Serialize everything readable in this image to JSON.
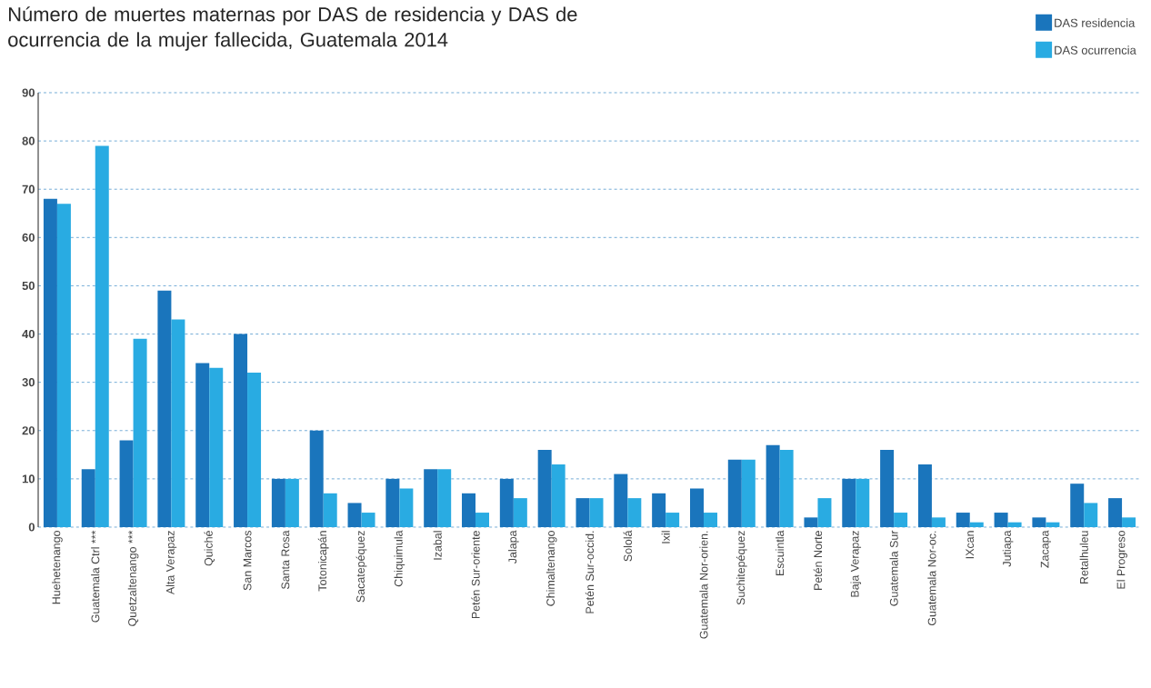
{
  "chart_data": {
    "type": "bar",
    "title": "Número de muertes maternas por DAS de residencia y DAS de ocurrencia de la mujer fallecida, Guatemala 2014",
    "categories": [
      "Huehetenango",
      "Guatemala Ctrl ***",
      "Quetzaltenango ***",
      "Alta Verapaz",
      "Quiché",
      "San Marcos",
      "Santa Rosa",
      "Totonicapán",
      "Sacatepéquez",
      "Chiquimula",
      "Izabal",
      "Petén Sur-oriente",
      "Jalapa",
      "Chimaltenango",
      "Petén Sur-occid.",
      "Sololá",
      "Ixil",
      "Guatemala Nor-orien.",
      "Suchitepéquez",
      "Escuintla",
      "Petén Norte",
      "Baja Verapaz",
      "Guatemala Sur",
      "Guatemala Nor-oc.",
      "IXcan",
      "Jutiapa",
      "Zacapa",
      "Retalhuleu",
      "El Progreso"
    ],
    "series": [
      {
        "name": "DAS residencia",
        "color": "#1a75bc",
        "values": [
          68,
          12,
          18,
          49,
          34,
          40,
          10,
          20,
          5,
          10,
          12,
          7,
          10,
          16,
          6,
          11,
          7,
          8,
          14,
          17,
          2,
          10,
          16,
          13,
          3,
          3,
          2,
          9,
          6
        ]
      },
      {
        "name": "DAS ocurrencia",
        "color": "#29abe2",
        "values": [
          67,
          79,
          39,
          43,
          33,
          32,
          10,
          7,
          3,
          8,
          12,
          3,
          6,
          13,
          6,
          6,
          3,
          3,
          14,
          16,
          6,
          10,
          3,
          2,
          1,
          1,
          1,
          5,
          2
        ]
      }
    ],
    "ylim": [
      0,
      90
    ],
    "yticks": [
      0,
      10,
      20,
      30,
      40,
      50,
      60,
      70,
      80,
      90
    ],
    "grid": "y",
    "legend": "top right"
  }
}
